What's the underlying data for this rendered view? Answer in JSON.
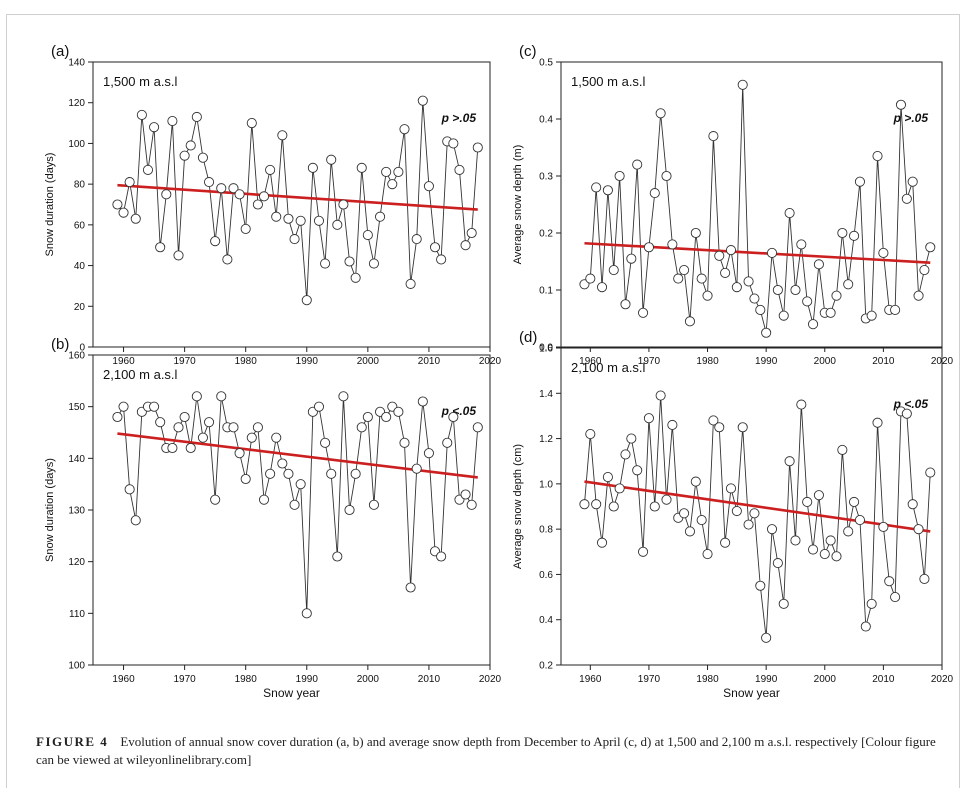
{
  "chart_data": [
    {
      "panel": "(a)",
      "type": "line",
      "subtitle": "1,500 m a.s.l",
      "annotation": "p >.05",
      "xlabel": "",
      "ylabel": "Snow duration (days)",
      "xlim": [
        1955,
        2020
      ],
      "ylim": [
        0,
        140
      ],
      "xticks": [
        1960,
        1970,
        1980,
        1990,
        2000,
        2010,
        2020
      ],
      "yticks": [
        0,
        20,
        40,
        60,
        80,
        100,
        120,
        140
      ],
      "x": [
        1959,
        1960,
        1961,
        1962,
        1963,
        1964,
        1965,
        1966,
        1967,
        1968,
        1969,
        1970,
        1971,
        1972,
        1973,
        1974,
        1975,
        1976,
        1977,
        1978,
        1979,
        1980,
        1981,
        1982,
        1983,
        1984,
        1985,
        1986,
        1987,
        1988,
        1989,
        1990,
        1991,
        1992,
        1993,
        1994,
        1995,
        1996,
        1997,
        1998,
        1999,
        2000,
        2001,
        2002,
        2003,
        2004,
        2005,
        2006,
        2007,
        2008,
        2009,
        2010,
        2011,
        2012,
        2013,
        2014,
        2015,
        2016,
        2017,
        2018
      ],
      "values": [
        70,
        66,
        81,
        63,
        114,
        87,
        108,
        49,
        75,
        111,
        45,
        94,
        99,
        113,
        93,
        81,
        52,
        78,
        43,
        78,
        75,
        58,
        110,
        70,
        74,
        87,
        64,
        104,
        63,
        53,
        62,
        23,
        88,
        62,
        41,
        92,
        60,
        70,
        42,
        34,
        88,
        55,
        41,
        64,
        86,
        80,
        86,
        107,
        31,
        53,
        121,
        79,
        49,
        43,
        101,
        100,
        87,
        50,
        56,
        98
      ],
      "trend": [
        79.5,
        67.5
      ],
      "trend_color": "#cc1f1f"
    },
    {
      "panel": "(b)",
      "type": "line",
      "subtitle": "2,100 m a.s.l",
      "annotation": "p <.05",
      "xlabel": "Snow year",
      "ylabel": "Snow duration (days)",
      "xlim": [
        1955,
        2020
      ],
      "ylim": [
        100,
        160
      ],
      "xticks": [
        1960,
        1970,
        1980,
        1990,
        2000,
        2010,
        2020
      ],
      "yticks": [
        100,
        110,
        120,
        130,
        140,
        150,
        160
      ],
      "x": [
        1959,
        1960,
        1961,
        1962,
        1963,
        1964,
        1965,
        1966,
        1967,
        1968,
        1969,
        1970,
        1971,
        1972,
        1973,
        1974,
        1975,
        1976,
        1977,
        1978,
        1979,
        1980,
        1981,
        1982,
        1983,
        1984,
        1985,
        1986,
        1987,
        1988,
        1989,
        1990,
        1991,
        1992,
        1993,
        1994,
        1995,
        1996,
        1997,
        1998,
        1999,
        2000,
        2001,
        2002,
        2003,
        2004,
        2005,
        2006,
        2007,
        2008,
        2009,
        2010,
        2011,
        2012,
        2013,
        2014,
        2015,
        2016,
        2017,
        2018
      ],
      "values": [
        148,
        150,
        134,
        128,
        149,
        150,
        150,
        147,
        142,
        142,
        146,
        148,
        142,
        152,
        144,
        147,
        132,
        152,
        146,
        146,
        141,
        136,
        144,
        146,
        132,
        137,
        144,
        139,
        137,
        131,
        135,
        110,
        149,
        150,
        143,
        137,
        121,
        152,
        130,
        137,
        146,
        148,
        131,
        149,
        148,
        150,
        149,
        143,
        115,
        138,
        151,
        141,
        122,
        121,
        143,
        148,
        132,
        133,
        131,
        146
      ],
      "trend": [
        144.8,
        136.3
      ],
      "trend_color": "#cc1f1f"
    },
    {
      "panel": "(c)",
      "type": "line",
      "subtitle": "1,500 m a.s.l",
      "annotation": "p >.05",
      "xlabel": "",
      "ylabel": "Average snow depth (m)",
      "xlim": [
        1955,
        2020
      ],
      "ylim": [
        0,
        0.5
      ],
      "xticks": [
        1960,
        1970,
        1980,
        1990,
        2000,
        2010,
        2020
      ],
      "yticks": [
        "0.0",
        "0.1",
        "0.2",
        "0.3",
        "0.4",
        "0.5"
      ],
      "x": [
        1959,
        1960,
        1961,
        1962,
        1963,
        1964,
        1965,
        1966,
        1967,
        1968,
        1969,
        1970,
        1971,
        1972,
        1973,
        1974,
        1975,
        1976,
        1977,
        1978,
        1979,
        1980,
        1981,
        1982,
        1983,
        1984,
        1985,
        1986,
        1987,
        1988,
        1989,
        1990,
        1991,
        1992,
        1993,
        1994,
        1995,
        1996,
        1997,
        1998,
        1999,
        2000,
        2001,
        2002,
        2003,
        2004,
        2005,
        2006,
        2007,
        2008,
        2009,
        2010,
        2011,
        2012,
        2013,
        2014,
        2015,
        2016,
        2017,
        2018
      ],
      "values": [
        0.11,
        0.12,
        0.28,
        0.105,
        0.275,
        0.135,
        0.3,
        0.075,
        0.155,
        0.32,
        0.06,
        0.175,
        0.27,
        0.41,
        0.3,
        0.18,
        0.12,
        0.135,
        0.045,
        0.2,
        0.12,
        0.09,
        0.37,
        0.16,
        0.13,
        0.17,
        0.105,
        0.46,
        0.115,
        0.085,
        0.065,
        0.025,
        0.165,
        0.1,
        0.055,
        0.235,
        0.1,
        0.18,
        0.08,
        0.04,
        0.145,
        0.06,
        0.06,
        0.09,
        0.2,
        0.11,
        0.195,
        0.29,
        0.05,
        0.055,
        0.335,
        0.165,
        0.065,
        0.065,
        0.425,
        0.26,
        0.29,
        0.09,
        0.135,
        0.175
      ],
      "trend": [
        0.182,
        0.148
      ],
      "trend_color": "#cc1f1f"
    },
    {
      "panel": "(d)",
      "type": "line",
      "subtitle": "2,100 m a.s.l",
      "annotation": "p <.05",
      "xlabel": "Snow year",
      "ylabel": "Average snow depth (cm)",
      "xlim": [
        1955,
        2020
      ],
      "ylim": [
        0.2,
        1.6
      ],
      "xticks": [
        1960,
        1970,
        1980,
        1990,
        2000,
        2010,
        2020
      ],
      "yticks": [
        "0.2",
        "0.4",
        "0.6",
        "0.8",
        "1.0",
        "1.2",
        "1.4",
        "1.6"
      ],
      "x": [
        1959,
        1960,
        1961,
        1962,
        1963,
        1964,
        1965,
        1966,
        1967,
        1968,
        1969,
        1970,
        1971,
        1972,
        1973,
        1974,
        1975,
        1976,
        1977,
        1978,
        1979,
        1980,
        1981,
        1982,
        1983,
        1984,
        1985,
        1986,
        1987,
        1988,
        1989,
        1990,
        1991,
        1992,
        1993,
        1994,
        1995,
        1996,
        1997,
        1998,
        1999,
        2000,
        2001,
        2002,
        2003,
        2004,
        2005,
        2006,
        2007,
        2008,
        2009,
        2010,
        2011,
        2012,
        2013,
        2014,
        2015,
        2016,
        2017,
        2018
      ],
      "values": [
        0.91,
        1.22,
        0.91,
        0.74,
        1.03,
        0.9,
        0.98,
        1.13,
        1.2,
        1.06,
        0.7,
        1.29,
        0.9,
        1.39,
        0.93,
        1.26,
        0.85,
        0.87,
        0.79,
        1.01,
        0.84,
        0.69,
        1.28,
        1.25,
        0.74,
        0.98,
        0.88,
        1.25,
        0.82,
        0.87,
        0.55,
        0.32,
        0.8,
        0.65,
        0.47,
        1.1,
        0.75,
        1.35,
        0.92,
        0.71,
        0.95,
        0.69,
        0.75,
        0.68,
        1.15,
        0.79,
        0.92,
        0.84,
        0.37,
        0.47,
        1.27,
        0.81,
        0.57,
        0.5,
        1.32,
        1.31,
        0.91,
        0.8,
        0.58,
        1.05
      ],
      "trend": [
        1.01,
        0.79
      ],
      "trend_color": "#cc1f1f"
    }
  ],
  "caption": {
    "label": "FIGURE 4",
    "text": "Evolution of annual snow cover duration (a, b) and average snow depth from December to April (c, d) at 1,500 and 2,100 m a.s.l. respectively [Colour figure can be viewed at wileyonlinelibrary.com]"
  }
}
